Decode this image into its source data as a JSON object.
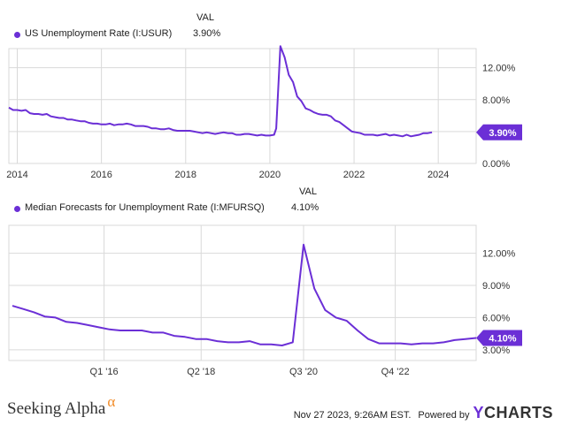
{
  "colors": {
    "line": "#6b2fd6",
    "badge_bg": "#6b2fd6",
    "badge_text": "#ffffff",
    "grid": "#d9d9d9",
    "axis": "#333333"
  },
  "chart_data": [
    {
      "type": "line",
      "legend_header": "VAL",
      "series": [
        {
          "name": "US Unemployment Rate (I:USUR)",
          "last_value_label": "3.90%"
        }
      ],
      "x_tick_labels": [
        "2014",
        "2016",
        "2018",
        "2020",
        "2022",
        "2024"
      ],
      "y_tick_labels": [
        "0.00%",
        "4.00%",
        "8.00%",
        "12.00%"
      ],
      "badge": "3.90%",
      "grid": true,
      "legend_placement": "top-left",
      "ylim": [
        0,
        14.4
      ],
      "xlim": [
        2013.8,
        2024.9
      ],
      "x": [
        2013.8,
        2013.9,
        2014.0,
        2014.1,
        2014.2,
        2014.3,
        2014.4,
        2014.5,
        2014.6,
        2014.7,
        2014.8,
        2014.9,
        2015.0,
        2015.1,
        2015.2,
        2015.3,
        2015.4,
        2015.5,
        2015.6,
        2015.7,
        2015.8,
        2015.9,
        2016.0,
        2016.1,
        2016.2,
        2016.3,
        2016.4,
        2016.5,
        2016.6,
        2016.7,
        2016.8,
        2016.9,
        2017.0,
        2017.1,
        2017.2,
        2017.3,
        2017.4,
        2017.5,
        2017.6,
        2017.7,
        2017.8,
        2017.9,
        2018.0,
        2018.1,
        2018.2,
        2018.3,
        2018.4,
        2018.5,
        2018.6,
        2018.7,
        2018.8,
        2018.9,
        2019.0,
        2019.1,
        2019.2,
        2019.3,
        2019.4,
        2019.5,
        2019.6,
        2019.7,
        2019.8,
        2019.9,
        2020.0,
        2020.1,
        2020.15,
        2020.25,
        2020.35,
        2020.45,
        2020.55,
        2020.65,
        2020.75,
        2020.85,
        2020.95,
        2021.05,
        2021.15,
        2021.25,
        2021.35,
        2021.45,
        2021.55,
        2021.65,
        2021.75,
        2021.85,
        2021.95,
        2022.05,
        2022.15,
        2022.25,
        2022.35,
        2022.45,
        2022.55,
        2022.65,
        2022.75,
        2022.85,
        2022.95,
        2023.05,
        2023.15,
        2023.25,
        2023.35,
        2023.45,
        2023.55,
        2023.65,
        2023.75,
        2023.85
      ],
      "values": [
        7.0,
        6.7,
        6.7,
        6.6,
        6.7,
        6.3,
        6.2,
        6.2,
        6.1,
        6.2,
        5.9,
        5.8,
        5.7,
        5.7,
        5.5,
        5.5,
        5.4,
        5.3,
        5.3,
        5.1,
        5.0,
        5.0,
        4.9,
        4.9,
        5.0,
        4.8,
        4.9,
        4.9,
        5.0,
        4.9,
        4.7,
        4.7,
        4.7,
        4.6,
        4.4,
        4.4,
        4.3,
        4.3,
        4.4,
        4.2,
        4.1,
        4.1,
        4.1,
        4.1,
        4.0,
        3.9,
        3.8,
        3.9,
        3.8,
        3.7,
        3.8,
        3.9,
        3.8,
        3.8,
        3.6,
        3.6,
        3.7,
        3.7,
        3.6,
        3.5,
        3.6,
        3.5,
        3.5,
        3.6,
        4.4,
        14.7,
        13.3,
        11.1,
        10.2,
        8.4,
        7.8,
        6.9,
        6.7,
        6.4,
        6.2,
        6.1,
        6.1,
        5.9,
        5.4,
        5.2,
        4.8,
        4.4,
        4.0,
        3.9,
        3.8,
        3.6,
        3.6,
        3.6,
        3.5,
        3.6,
        3.7,
        3.5,
        3.6,
        3.5,
        3.4,
        3.6,
        3.4,
        3.5,
        3.6,
        3.8,
        3.8,
        3.9
      ]
    },
    {
      "type": "line",
      "legend_header": "VAL",
      "series": [
        {
          "name": "Median Forecasts for Unemployment Rate (I:MFURSQ)",
          "last_value_label": "4.10%"
        }
      ],
      "x_tick_labels": [
        "Q1 '16",
        "Q2 '18",
        "Q3 '20",
        "Q4 '22"
      ],
      "y_tick_labels": [
        "3.00%",
        "6.00%",
        "9.00%",
        "12.00%"
      ],
      "badge": "4.10%",
      "grid": true,
      "legend_placement": "top-left",
      "ylim": [
        2.0,
        14.6
      ],
      "xlim": [
        0,
        43
      ],
      "x": [
        0,
        1,
        2,
        3,
        4,
        5,
        6,
        7,
        8,
        9,
        10,
        11,
        12,
        13,
        14,
        15,
        16,
        17,
        18,
        19,
        20,
        21,
        22,
        23,
        24,
        25,
        26,
        27,
        28,
        29,
        30,
        31,
        32,
        33,
        34,
        35,
        36,
        37,
        38,
        39,
        40,
        41,
        42,
        43
      ],
      "values": [
        7.1,
        6.8,
        6.5,
        6.1,
        6.0,
        5.6,
        5.5,
        5.3,
        5.1,
        4.9,
        4.8,
        4.8,
        4.8,
        4.6,
        4.6,
        4.3,
        4.2,
        4.0,
        4.0,
        3.8,
        3.7,
        3.7,
        3.8,
        3.5,
        3.5,
        3.4,
        3.7,
        12.8,
        8.7,
        6.7,
        6.0,
        5.7,
        4.8,
        4.0,
        3.6,
        3.6,
        3.6,
        3.5,
        3.6,
        3.6,
        3.7,
        3.9,
        4.0,
        4.1
      ]
    }
  ],
  "footer": {
    "brand": "Seeking Alpha",
    "brand_symbol": "α",
    "timestamp": "Nov 27 2023, 9:26AM EST.",
    "powered_by": "Powered by",
    "ycharts_y": "Y",
    "ycharts_rest": "CHARTS"
  }
}
